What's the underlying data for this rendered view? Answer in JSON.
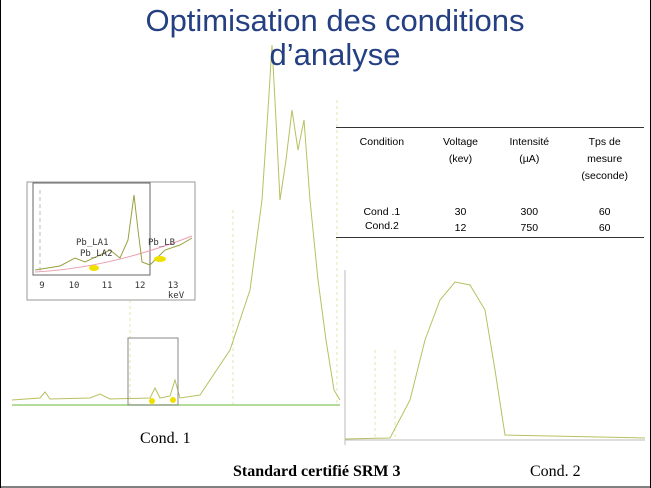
{
  "header": {
    "title": "Optimisation des conditions d’analyse"
  },
  "table": {
    "columns": [
      "Condition",
      "Voltage (kev)",
      "Intensité (µA)",
      "Tps de mesure (seconde)"
    ],
    "rows": [
      [
        "Cond .1",
        30,
        300,
        60
      ],
      [
        "Cond.2",
        12,
        750,
        60
      ]
    ]
  },
  "inset": {
    "peaks": [
      "Pb_LA1",
      "Pb_LA2",
      "Pb_LB"
    ],
    "ticks": [
      9,
      10,
      11,
      12,
      13
    ],
    "unit": "keV"
  },
  "captions": {
    "left": "Cond. 1",
    "standard": "Standard certifié SRM 3",
    "right": "Cond. 2"
  }
}
